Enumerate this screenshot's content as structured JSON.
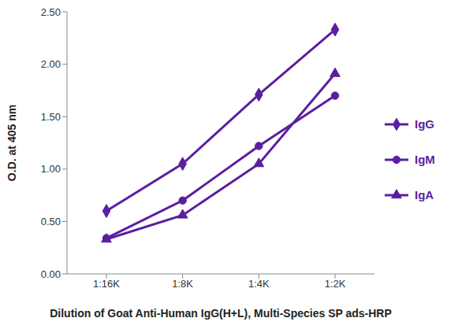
{
  "chart_data": {
    "type": "line",
    "x_label": "Dilution of Goat Anti-Human IgG(H+L), Multi-Species SP ads-HRP",
    "y_label": "O.D. at 405 nm",
    "categories": [
      "1:16K",
      "1:8K",
      "1:4K",
      "1:2K"
    ],
    "series": [
      {
        "name": "IgG",
        "color": "#5a1fa0",
        "marker": "diamond",
        "values": [
          0.6,
          1.05,
          1.71,
          2.33
        ]
      },
      {
        "name": "IgM",
        "color": "#5a1fa0",
        "marker": "circle",
        "values": [
          0.34,
          0.7,
          1.22,
          1.7
        ]
      },
      {
        "name": "IgA",
        "color": "#5a1fa0",
        "marker": "triangle",
        "values": [
          0.33,
          0.56,
          1.05,
          1.91
        ]
      }
    ],
    "ylim": [
      0,
      2.5
    ],
    "yticks": [
      {
        "value": 0,
        "label": "0.00"
      },
      {
        "value": 0.5,
        "label": "0.50"
      },
      {
        "value": 1,
        "label": "1.00"
      },
      {
        "value": 1.5,
        "label": "1.50"
      },
      {
        "value": 2,
        "label": "2.00"
      },
      {
        "value": 2.5,
        "label": "2.50"
      }
    ],
    "grid": false,
    "legend": "right"
  }
}
